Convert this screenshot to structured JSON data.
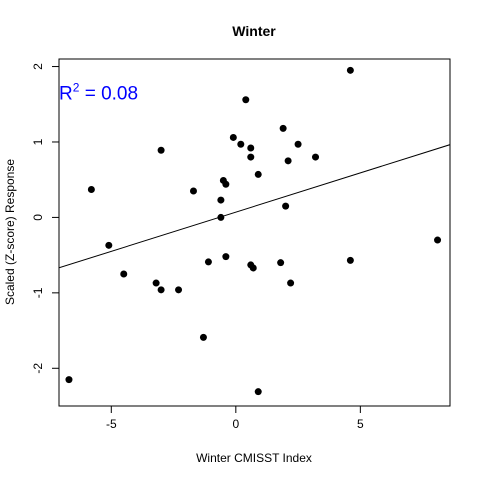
{
  "chart_data": {
    "type": "scatter",
    "title": "Winter",
    "xlabel": "Winter CMISST Index",
    "ylabel": "Scaled (Z-score) Response",
    "xlim": [
      -7.1,
      8.6
    ],
    "ylim": [
      -2.5,
      2.1
    ],
    "xticks": [
      -5,
      0,
      5
    ],
    "yticks": [
      -2,
      -1,
      0,
      1,
      2
    ],
    "xtick_labels": [
      "-5",
      "0",
      "5"
    ],
    "ytick_labels": [
      "-2",
      "-1",
      "0",
      "1",
      "2"
    ],
    "grid": false,
    "legend": "none",
    "annotation": {
      "base": "R",
      "superscript": "2",
      "suffix": " = 0.08",
      "color": "#0000ff",
      "anchor": [
        -7.1,
        1.6
      ]
    },
    "regression_line": {
      "intercept": 0.07,
      "slope": 0.104,
      "color": "#000000"
    },
    "point_color": "#000000",
    "points": [
      {
        "x": -6.7,
        "y": -2.15
      },
      {
        "x": -5.8,
        "y": 0.37
      },
      {
        "x": -5.1,
        "y": -0.37
      },
      {
        "x": -4.5,
        "y": -0.75
      },
      {
        "x": -3.2,
        "y": -0.87
      },
      {
        "x": -3.0,
        "y": -0.96
      },
      {
        "x": -3.0,
        "y": 0.89
      },
      {
        "x": -2.3,
        "y": -0.96
      },
      {
        "x": -1.7,
        "y": 0.35
      },
      {
        "x": -1.3,
        "y": -1.59
      },
      {
        "x": -1.1,
        "y": -0.59
      },
      {
        "x": -0.6,
        "y": 0.23
      },
      {
        "x": -0.6,
        "y": 0.0
      },
      {
        "x": -0.5,
        "y": 0.49
      },
      {
        "x": -0.4,
        "y": 0.44
      },
      {
        "x": -0.4,
        "y": -0.52
      },
      {
        "x": -0.1,
        "y": 1.06
      },
      {
        "x": 0.2,
        "y": 0.97
      },
      {
        "x": 0.4,
        "y": 1.56
      },
      {
        "x": 0.6,
        "y": 0.92
      },
      {
        "x": 0.6,
        "y": 0.8
      },
      {
        "x": 0.6,
        "y": -0.63
      },
      {
        "x": 0.7,
        "y": -0.67
      },
      {
        "x": 0.9,
        "y": 0.57
      },
      {
        "x": 0.9,
        "y": -2.31
      },
      {
        "x": 1.9,
        "y": 1.18
      },
      {
        "x": 1.8,
        "y": -0.6
      },
      {
        "x": 2.0,
        "y": 0.15
      },
      {
        "x": 2.1,
        "y": 0.75
      },
      {
        "x": 2.2,
        "y": -0.87
      },
      {
        "x": 2.5,
        "y": 0.97
      },
      {
        "x": 3.2,
        "y": 0.8
      },
      {
        "x": 4.6,
        "y": 1.95
      },
      {
        "x": 4.6,
        "y": -0.57
      },
      {
        "x": 8.1,
        "y": -0.3
      }
    ]
  }
}
